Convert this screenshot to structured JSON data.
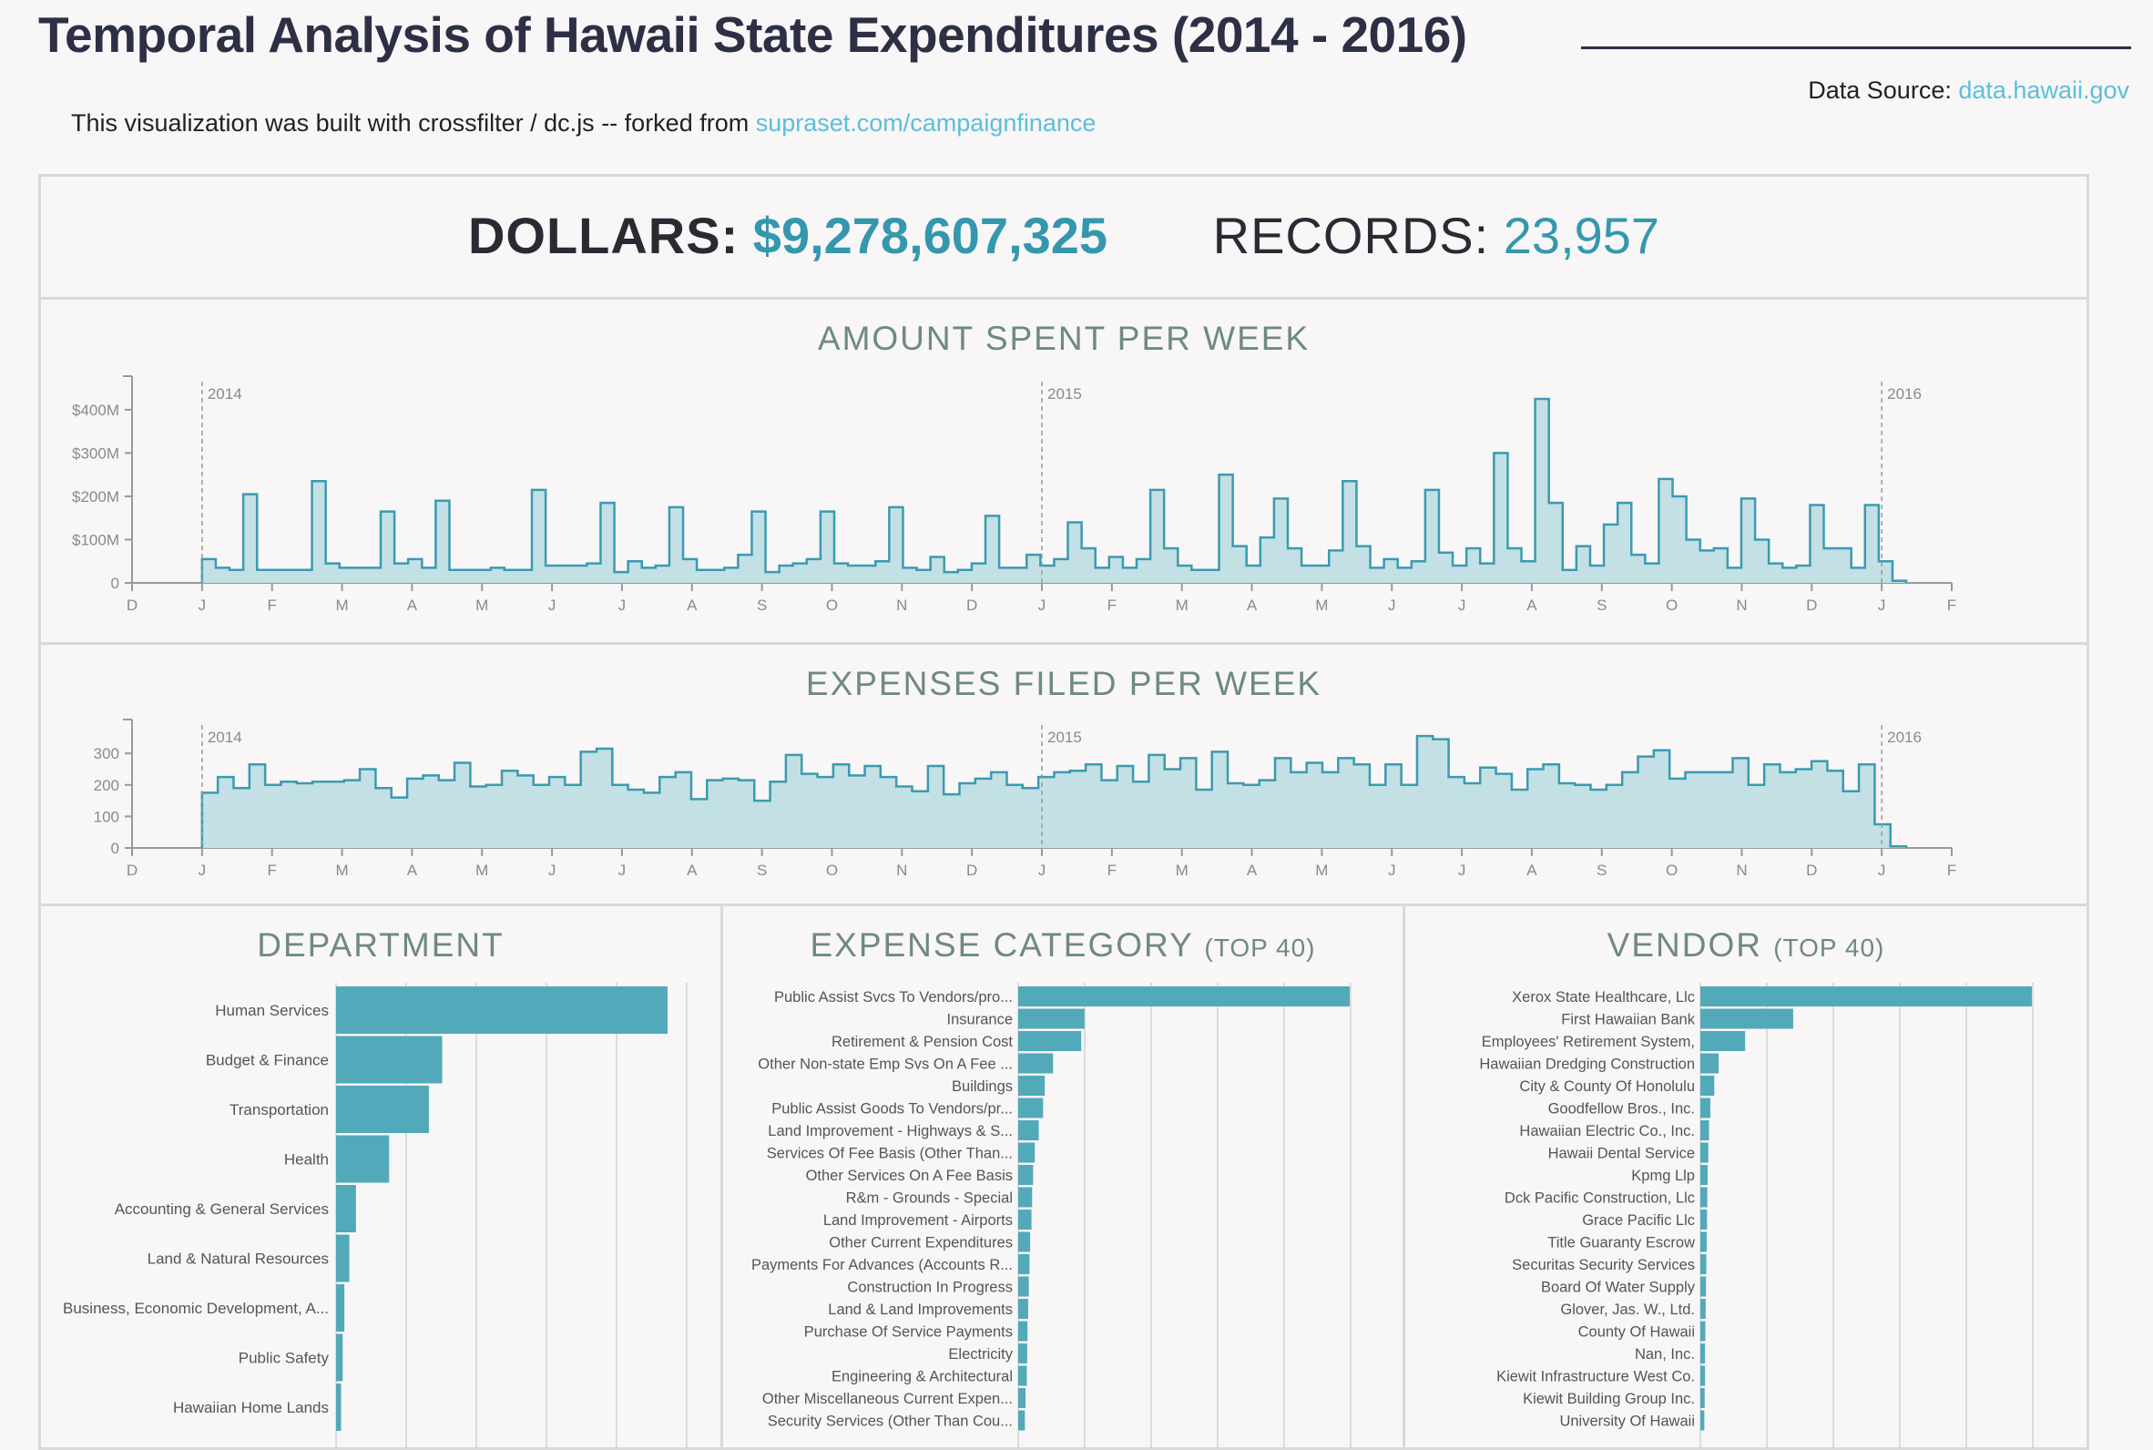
{
  "header": {
    "title": "Temporal Analysis of Hawaii State Expenditures (2014 - 2016)",
    "source_label": "Data Source:",
    "source_link": "data.hawaii.gov",
    "intro_text": "This visualization was built with crossfilter / dc.js -- forked from ",
    "intro_link": "supraset.com/campaignfinance"
  },
  "totals": {
    "dollars_label": "DOLLARS:",
    "dollars_value": "$9,278,607,325",
    "records_label": "RECORDS:",
    "records_value": "23,957"
  },
  "colors": {
    "accent": "#3597ad",
    "line": "#3a9bb0",
    "area_fill": "#c3e0e5",
    "bar_fill": "#52a9ba",
    "title_green": "#6f8a7e",
    "link": "#5bbfd9"
  },
  "chart_data": [
    {
      "id": "amount",
      "type": "area",
      "title": "AMOUNT SPENT PER WEEK",
      "x_ticks": [
        "D",
        "J",
        "F",
        "M",
        "A",
        "M",
        "J",
        "J",
        "A",
        "S",
        "O",
        "N",
        "D",
        "J",
        "F",
        "M",
        "A",
        "M",
        "J",
        "J",
        "A",
        "S",
        "O",
        "N",
        "D",
        "J",
        "F"
      ],
      "year_markers": [
        "2014",
        "2015",
        "2016"
      ],
      "y_ticks": [
        "0",
        "$100M",
        "$200M",
        "$300M",
        "$400M"
      ],
      "y_unit": "millions of dollars",
      "ylim": [
        0,
        465
      ],
      "values": [
        55,
        35,
        30,
        205,
        30,
        30,
        30,
        30,
        235,
        45,
        35,
        35,
        35,
        165,
        45,
        55,
        35,
        190,
        30,
        30,
        30,
        35,
        30,
        30,
        215,
        40,
        40,
        40,
        45,
        185,
        25,
        50,
        35,
        40,
        175,
        55,
        30,
        30,
        35,
        65,
        165,
        25,
        40,
        45,
        55,
        165,
        45,
        40,
        40,
        50,
        175,
        35,
        30,
        60,
        25,
        30,
        45,
        155,
        35,
        35,
        65,
        40,
        55,
        140,
        80,
        35,
        60,
        35,
        55,
        215,
        80,
        40,
        30,
        30,
        250,
        85,
        40,
        105,
        195,
        80,
        40,
        40,
        75,
        235,
        85,
        35,
        55,
        35,
        50,
        215,
        70,
        40,
        80,
        45,
        300,
        80,
        50,
        425,
        185,
        30,
        85,
        40,
        135,
        185,
        65,
        45,
        240,
        200,
        100,
        75,
        80,
        35,
        195,
        100,
        45,
        35,
        40,
        180,
        80,
        80,
        35,
        180,
        50,
        5
      ]
    },
    {
      "id": "filed",
      "type": "area",
      "title": "EXPENSES FILED PER WEEK",
      "x_ticks": [
        "D",
        "J",
        "F",
        "M",
        "A",
        "M",
        "J",
        "J",
        "A",
        "S",
        "O",
        "N",
        "D",
        "J",
        "F",
        "M",
        "A",
        "M",
        "J",
        "J",
        "A",
        "S",
        "O",
        "N",
        "D",
        "J",
        "F"
      ],
      "year_markers": [
        "2014",
        "2015",
        "2016"
      ],
      "y_ticks": [
        "0",
        "100",
        "200",
        "300"
      ],
      "ylim": [
        0,
        390
      ],
      "values": [
        175,
        225,
        190,
        265,
        200,
        210,
        205,
        210,
        210,
        215,
        250,
        190,
        160,
        220,
        230,
        215,
        270,
        195,
        200,
        245,
        230,
        200,
        225,
        200,
        305,
        315,
        200,
        185,
        175,
        225,
        240,
        155,
        215,
        220,
        215,
        150,
        210,
        295,
        235,
        225,
        265,
        230,
        260,
        225,
        195,
        180,
        260,
        170,
        205,
        220,
        240,
        200,
        190,
        225,
        240,
        245,
        265,
        215,
        260,
        210,
        295,
        250,
        285,
        185,
        305,
        205,
        200,
        215,
        285,
        240,
        270,
        240,
        285,
        265,
        200,
        265,
        200,
        355,
        345,
        225,
        205,
        255,
        235,
        185,
        250,
        265,
        205,
        200,
        185,
        200,
        240,
        290,
        310,
        220,
        240,
        240,
        240,
        285,
        200,
        265,
        240,
        250,
        275,
        245,
        180,
        265,
        75,
        5
      ]
    },
    {
      "id": "department",
      "type": "bar",
      "title": "DEPARTMENT",
      "subtitle": "",
      "orientation": "horizontal",
      "categories": [
        "Human Services",
        "Budget & Finance",
        "Transportation",
        "Health",
        "Accounting & General Services",
        "Land & Natural Resources",
        "Business, Economic Development, A...",
        "Public Safety",
        "Hawaiian Home Lands"
      ],
      "values": [
        100,
        32,
        28,
        16,
        6,
        4,
        2.5,
        2,
        1.5
      ]
    },
    {
      "id": "category",
      "type": "bar",
      "title": "EXPENSE CATEGORY",
      "subtitle": "(TOP 40)",
      "orientation": "horizontal",
      "categories": [
        "Public Assist Svcs To Vendors/pro...",
        "Insurance",
        "Retirement & Pension Cost",
        "Other Non-state Emp Svs On A Fee ...",
        "Buildings",
        "Public Assist Goods To Vendors/pr...",
        "Land Improvement - Highways & S...",
        "Services Of Fee Basis (Other Than...",
        "Other Services On A Fee Basis",
        "R&m - Grounds - Special",
        "Land Improvement - Airports",
        "Other Current Expenditures",
        "Payments For Advances (Accounts R...",
        "Construction In Progress",
        "Land & Land Improvements",
        "Purchase Of Service Payments",
        "Electricity",
        "Engineering & Architectural",
        "Other Miscellaneous Current Expen...",
        "Security Services (Other Than Cou..."
      ],
      "values": [
        100,
        20,
        19,
        10.5,
        8,
        7.5,
        6.2,
        5,
        4.5,
        4.2,
        4,
        3.6,
        3.4,
        3.2,
        3,
        2.8,
        2.7,
        2.6,
        2.2,
        2
      ]
    },
    {
      "id": "vendor",
      "type": "bar",
      "title": "VENDOR",
      "subtitle": "(TOP 40)",
      "orientation": "horizontal",
      "categories": [
        "Xerox State Healthcare, Llc",
        "First Hawaiian Bank",
        "Employees' Retirement System,",
        "Hawaiian Dredging Construction",
        "City & County Of Honolulu",
        "Goodfellow Bros., Inc.",
        "Hawaiian Electric Co., Inc.",
        "Hawaii Dental Service",
        "Kpmg Llp",
        "Dck Pacific Construction, Llc",
        "Grace Pacific Llc",
        "Title Guaranty Escrow",
        "Securitas Security Services",
        "Board Of Water Supply",
        "Glover, Jas. W., Ltd.",
        "County Of Hawaii",
        "Nan, Inc.",
        "Kiewit Infrastructure West Co.",
        "Kiewit Building Group Inc.",
        "University Of Hawaii"
      ],
      "values": [
        100,
        28,
        13.5,
        5.5,
        4.2,
        3,
        2.6,
        2.4,
        2.2,
        2.1,
        2,
        1.9,
        1.8,
        1.7,
        1.6,
        1.5,
        1.4,
        1.4,
        1.3,
        1.2
      ]
    }
  ]
}
